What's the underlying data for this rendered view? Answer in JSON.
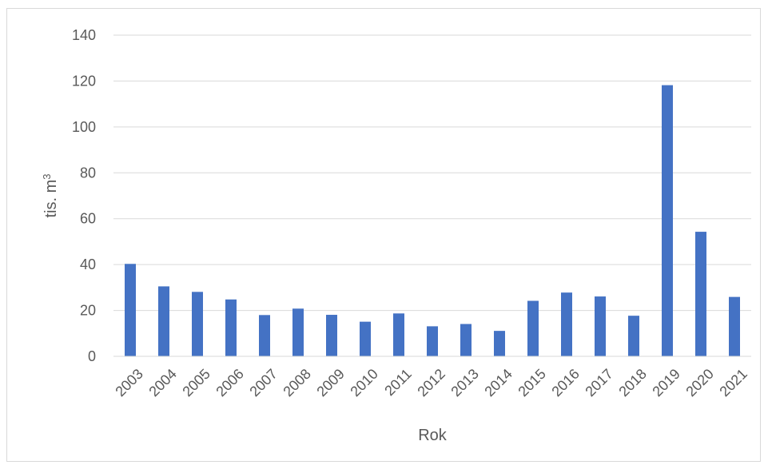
{
  "chart_data": {
    "type": "bar",
    "title": "",
    "xlabel": "Rok",
    "ylabel": "tis. m",
    "ylabel_superscript": "3",
    "categories": [
      "2003",
      "2004",
      "2005",
      "2006",
      "2007",
      "2008",
      "2009",
      "2010",
      "2011",
      "2012",
      "2013",
      "2014",
      "2015",
      "2016",
      "2017",
      "2018",
      "2019",
      "2020",
      "2021"
    ],
    "values": [
      40.3,
      30.5,
      28.1,
      24.8,
      18.0,
      20.8,
      18.1,
      15.1,
      18.7,
      13.1,
      14.1,
      11.1,
      24.2,
      27.8,
      26.1,
      17.7,
      118.2,
      54.3,
      25.9
    ],
    "ylim": [
      0,
      140
    ],
    "yticks": [
      0,
      20,
      40,
      60,
      80,
      100,
      120,
      140
    ],
    "grid": true,
    "legend": "none",
    "colors": {
      "bar": "#4472C4",
      "grid": "#d9d9d9",
      "text": "#595959"
    }
  }
}
